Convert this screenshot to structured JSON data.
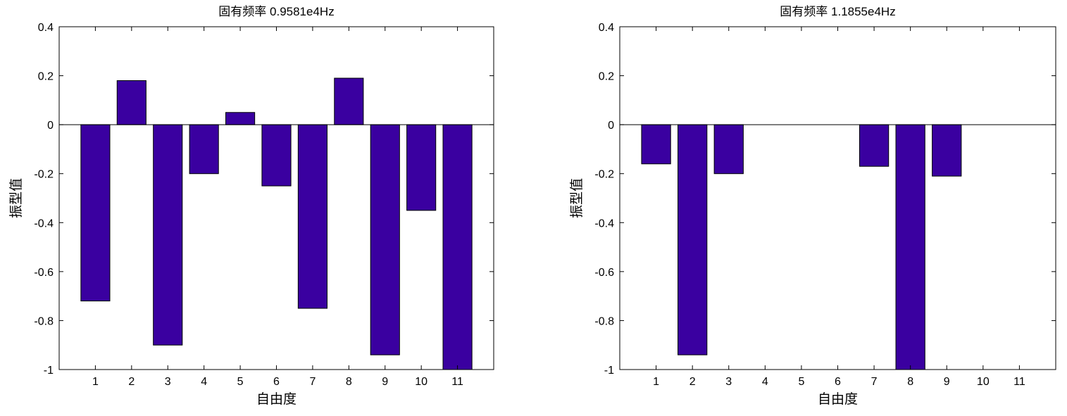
{
  "chart_data": [
    {
      "type": "bar",
      "title": "固有频率 0.9581e4Hz",
      "xlabel": "自由度",
      "ylabel": "振型值",
      "categories": [
        "1",
        "2",
        "3",
        "4",
        "5",
        "6",
        "7",
        "8",
        "9",
        "10",
        "11"
      ],
      "values": [
        -0.72,
        0.18,
        -0.9,
        -0.2,
        0.05,
        -0.25,
        -0.75,
        0.19,
        -0.94,
        -0.35,
        -1.0
      ],
      "ylim": [
        -1,
        0.4
      ],
      "yticks": [
        "0.4",
        "0.2",
        "0",
        "-0.2",
        "-0.4",
        "-0.6",
        "-0.8",
        "-1"
      ],
      "bar_color": "#3a00a0"
    },
    {
      "type": "bar",
      "title": "固有频率 1.1855e4Hz",
      "xlabel": "自由度",
      "ylabel": "振型值",
      "categories": [
        "1",
        "2",
        "3",
        "4",
        "5",
        "6",
        "7",
        "8",
        "9",
        "10",
        "11"
      ],
      "values": [
        -0.16,
        -0.94,
        -0.2,
        0,
        0,
        0,
        -0.17,
        -1.0,
        -0.21,
        0,
        0
      ],
      "ylim": [
        -1,
        0.4
      ],
      "yticks": [
        "0.4",
        "0.2",
        "0",
        "-0.2",
        "-0.4",
        "-0.6",
        "-0.8",
        "-1"
      ],
      "bar_color": "#3a00a0"
    }
  ]
}
